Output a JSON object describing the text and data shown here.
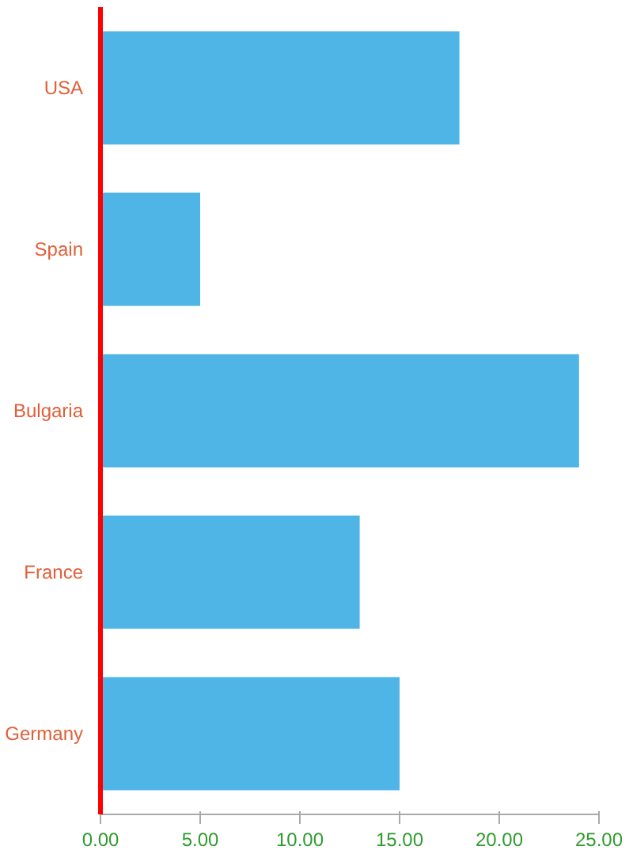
{
  "chart_data": {
    "type": "bar",
    "orientation": "horizontal",
    "categories": [
      "USA",
      "Spain",
      "Bulgaria",
      "France",
      "Germany"
    ],
    "values": [
      18,
      5,
      24,
      13,
      15
    ],
    "color": "#4fb5e6",
    "xlim": [
      0,
      25
    ],
    "xticks": [
      {
        "value": 0,
        "label": "0.00"
      },
      {
        "value": 5,
        "label": "5.00"
      },
      {
        "value": 10,
        "label": "10.00"
      },
      {
        "value": 15,
        "label": "15.00"
      },
      {
        "value": 20,
        "label": "20.00"
      },
      {
        "value": 25,
        "label": "25.00"
      }
    ],
    "grid": false
  }
}
